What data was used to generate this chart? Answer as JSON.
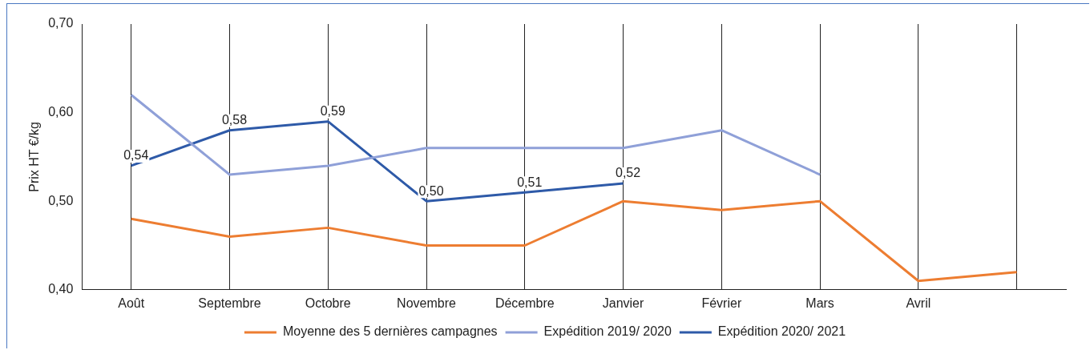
{
  "chart_data": {
    "type": "line",
    "ylabel": "Prix HT €/kg",
    "categories": [
      "Août",
      "Septembre",
      "Octobre",
      "Novembre",
      "Décembre",
      "Janvier",
      "Février",
      "Mars",
      "Avril",
      null
    ],
    "series": [
      {
        "name": "Moyenne des 5 dernières campagnes",
        "color": "#ed7d31",
        "values": [
          0.48,
          0.46,
          0.47,
          0.45,
          0.45,
          0.5,
          0.49,
          0.5,
          0.41,
          0.42
        ]
      },
      {
        "name": "Expédition 2019/ 2020",
        "color": "#8fa0d8",
        "values": [
          0.62,
          0.53,
          0.54,
          0.56,
          0.56,
          0.56,
          0.58,
          0.53,
          null,
          null
        ]
      },
      {
        "name": "Expédition 2020/ 2021",
        "color": "#2e5aa8",
        "values": [
          0.54,
          0.58,
          0.59,
          0.5,
          0.51,
          0.52,
          null,
          null,
          null,
          null
        ],
        "value_labels": [
          "0,54",
          "0,58",
          "0,59",
          "0,50",
          "0,51",
          "0,52",
          null,
          null,
          null,
          null
        ]
      }
    ],
    "ylim": [
      0.4,
      0.7
    ],
    "yticks": [
      {
        "value": 0.4,
        "label": "0,40"
      },
      {
        "value": 0.5,
        "label": "0,50"
      },
      {
        "value": 0.6,
        "label": "0,60"
      },
      {
        "value": 0.7,
        "label": "0,70"
      }
    ],
    "grid": "x",
    "legend": "bottom",
    "marker": "none",
    "line_style": "solid"
  }
}
